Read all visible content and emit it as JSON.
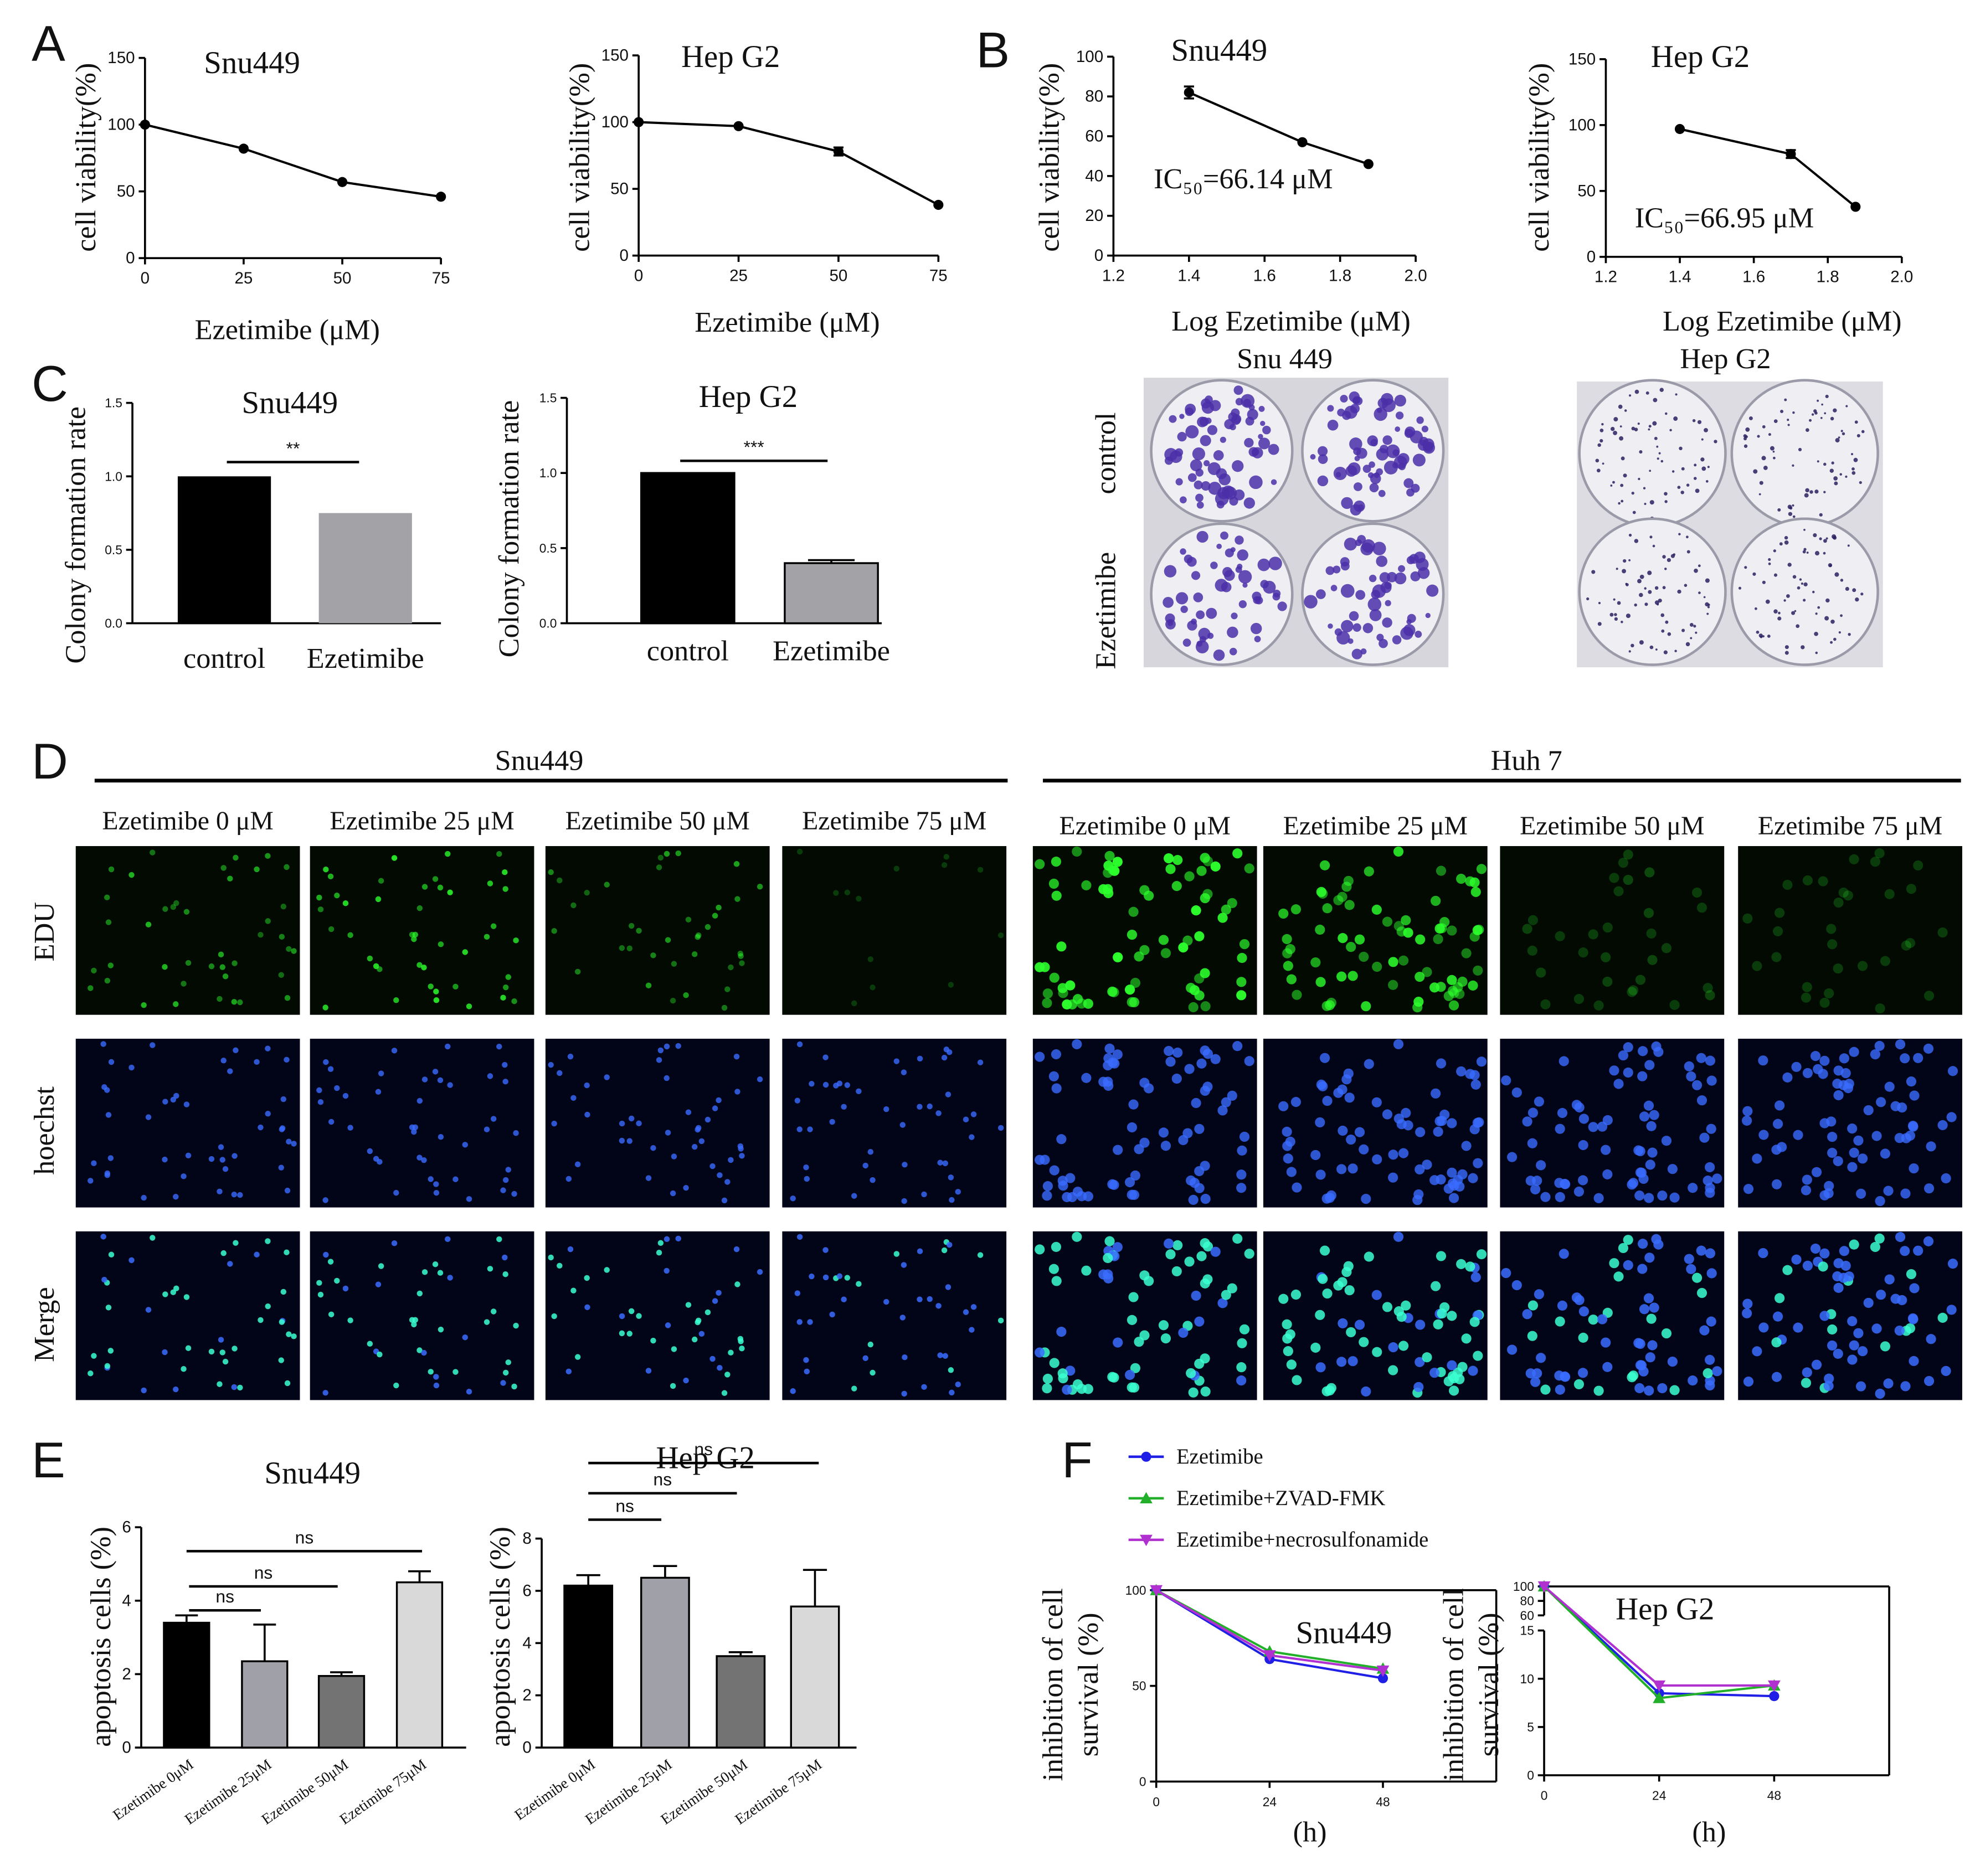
{
  "panel_labels": [
    "A",
    "B",
    "C",
    "D",
    "E",
    "F"
  ],
  "colony_images": {
    "titles": [
      "Snu 449",
      "Hep G2"
    ],
    "rows": [
      "control",
      "Ezetimibe"
    ]
  },
  "microscopy": {
    "groups": [
      {
        "name": "Snu449",
        "columns": [
          "Ezetimibe 0 μM",
          "Ezetimibe 25 μM",
          "Ezetimibe 50 μM",
          "Ezetimibe 75 μM"
        ]
      },
      {
        "name": "Huh 7",
        "columns": [
          "Ezetimibe 0 μM",
          "Ezetimibe 25 μM",
          "Ezetimibe 50 μM",
          "Ezetimibe 75 μM"
        ]
      }
    ],
    "rows": [
      "EDU",
      "hoechst",
      "Merge"
    ]
  },
  "chart_data": [
    {
      "type": "line",
      "title": "Snu449",
      "xlabel": "Ezetimibe (μM)",
      "ylabel": "cell viability(%)",
      "x": [
        0,
        25,
        50,
        75
      ],
      "values": [
        100,
        82,
        57,
        46
      ],
      "color": "#000000",
      "xlim": [
        0,
        75
      ],
      "ylim": [
        0,
        150
      ],
      "xticks": [
        0,
        25,
        50,
        75
      ],
      "yticks": [
        0,
        50,
        100,
        150
      ]
    },
    {
      "type": "line",
      "title": "Hep G2",
      "xlabel": "Ezetimibe (μM)",
      "ylabel": "cell viability(%)",
      "x": [
        0,
        25,
        50,
        75
      ],
      "values": [
        100,
        97,
        78,
        38
      ],
      "errors": [
        null,
        null,
        3,
        null
      ],
      "color": "#000000",
      "xlim": [
        0,
        75
      ],
      "ylim": [
        0,
        150
      ],
      "xticks": [
        0,
        25,
        50,
        75
      ],
      "yticks": [
        0,
        50,
        100,
        150
      ]
    },
    {
      "type": "line",
      "title": "Snu449",
      "xlabel": "Log Ezetimibe (μM)",
      "ylabel": "cell viability(%)",
      "annotation": "IC₅₀=66.14 μM",
      "x": [
        1.4,
        1.7,
        1.875
      ],
      "values": [
        82,
        57,
        46
      ],
      "errors": [
        3,
        null,
        null
      ],
      "color": "#000000",
      "xlim": [
        1.2,
        2.0
      ],
      "ylim": [
        0,
        100
      ],
      "xticks": [
        1.2,
        1.4,
        1.6,
        1.8,
        {
          "value": 2,
          "label": "2.0"
        }
      ],
      "yticks": [
        0,
        20,
        40,
        60,
        80,
        100
      ]
    },
    {
      "type": "line",
      "title": "Hep G2",
      "xlabel": "Log Ezetimibe (μM)",
      "ylabel": "cell viability(%)",
      "annotation": "IC₅₀=66.95 μM",
      "x": [
        1.4,
        1.7,
        1.875
      ],
      "values": [
        97,
        78,
        38
      ],
      "errors": [
        null,
        3,
        null
      ],
      "color": "#000000",
      "xlim": [
        1.2,
        2.0
      ],
      "ylim": [
        0,
        150
      ],
      "xticks": [
        1.2,
        1.4,
        1.6,
        1.8,
        {
          "value": 2,
          "label": "2.0"
        }
      ],
      "yticks": [
        0,
        50,
        100,
        150
      ]
    },
    {
      "type": "bar",
      "title": "Snu449",
      "ylabel": "Colony formation rate",
      "categories": [
        "control",
        "Ezetimibe"
      ],
      "values": [
        1.0,
        0.75
      ],
      "colors": [
        "#000000",
        "#a3a3a7"
      ],
      "ylim": [
        0,
        1.5
      ],
      "yticks": [
        {
          "value": 0,
          "label": "0.0"
        },
        0.5,
        {
          "value": 1,
          "label": "1.0"
        },
        1.5
      ],
      "annotations": [
        "**"
      ]
    },
    {
      "type": "bar",
      "title": "Hep G2",
      "ylabel": "Colony formation rate",
      "categories": [
        "control",
        "Ezetimibe"
      ],
      "values": [
        1.0,
        0.4
      ],
      "errors": [
        null,
        0.02
      ],
      "colors": [
        "#000000",
        "#a3a3a7"
      ],
      "ylim": [
        0,
        1.5
      ],
      "yticks": [
        {
          "value": 0,
          "label": "0.0"
        },
        0.5,
        {
          "value": 1,
          "label": "1.0"
        },
        1.5
      ],
      "annotations": [
        "***"
      ]
    },
    {
      "type": "bar",
      "title": "Snu449",
      "ylabel": "apoptosis cells (%)",
      "categories": [
        "Ezetimibe 0μM",
        "Ezetimibe 25μM",
        "Ezetimibe 50μM",
        "Ezetimibe 75μM"
      ],
      "values": [
        3.4,
        2.35,
        1.95,
        4.5
      ],
      "errors": [
        0.2,
        1.0,
        0.1,
        0.3
      ],
      "colors": [
        "#000000",
        "#a0a0a8",
        "#737373",
        "#d9d9d9"
      ],
      "ylim": [
        0,
        6
      ],
      "yticks": [
        0,
        2,
        4,
        6
      ],
      "annotations": [
        "ns",
        "ns",
        "ns"
      ]
    },
    {
      "type": "bar",
      "title": "Hep G2",
      "ylabel": "apoptosis cells (%)",
      "categories": [
        "Ezetimibe 0μM",
        "Ezetimibe 25μM",
        "Ezetimibe 50μM",
        "Ezetimibe 75μM"
      ],
      "values": [
        6.2,
        6.5,
        3.5,
        5.4
      ],
      "errors": [
        0.4,
        0.45,
        0.15,
        1.4
      ],
      "colors": [
        "#000000",
        "#a0a0a8",
        "#737373",
        "#d9d9d9"
      ],
      "ylim": [
        0,
        8
      ],
      "yticks": [
        0,
        2,
        4,
        6,
        8
      ],
      "annotations": [
        "ns",
        "ns",
        "ns"
      ]
    },
    {
      "type": "line",
      "title": "Snu449",
      "xlabel": "(h)",
      "ylabel": [
        "inhibition of cell",
        "survival (%)"
      ],
      "legend": true,
      "x": [
        0,
        24,
        48
      ],
      "series": [
        {
          "name": "Ezetimibe",
          "color": "#1f1fe6",
          "marker": "circle",
          "values": [
            100,
            64,
            54
          ]
        },
        {
          "name": "Ezetimibe+ZVAD-FMK",
          "color": "#22b02a",
          "marker": "triangle-up",
          "values": [
            100,
            68,
            59
          ]
        },
        {
          "name": "Ezetimibe+necrosulfonamide",
          "color": "#b030d0",
          "marker": "triangle-down",
          "values": [
            100,
            66,
            58
          ]
        }
      ],
      "xlim": [
        0,
        72
      ],
      "ylim": [
        0,
        100
      ],
      "xticks": [
        0,
        24,
        48
      ],
      "yticks": [
        0,
        50,
        100
      ]
    },
    {
      "type": "line",
      "title": "Hep G2",
      "xlabel": "(h)",
      "ylabel": [
        "inhibition of cell",
        "survival (%)"
      ],
      "x": [
        0,
        24,
        48
      ],
      "series": [
        {
          "color": "#1f1fe6",
          "marker": "circle",
          "values": [
            100,
            8.5,
            8.2
          ]
        },
        {
          "color": "#22b02a",
          "marker": "triangle-up",
          "values": [
            100,
            8,
            9.3
          ]
        },
        {
          "color": "#b030d0",
          "marker": "triangle-down",
          "values": [
            100,
            9.3,
            9.3
          ]
        }
      ],
      "xlim": [
        0,
        72
      ],
      "ylim": [
        0,
        15
      ],
      "xticks": [
        0,
        24,
        48
      ],
      "yticks": [
        0,
        5,
        10,
        15
      ],
      "y_break": {
        "ylim": [
          60,
          100
        ],
        "yticks": [
          60,
          80,
          100
        ]
      }
    }
  ]
}
